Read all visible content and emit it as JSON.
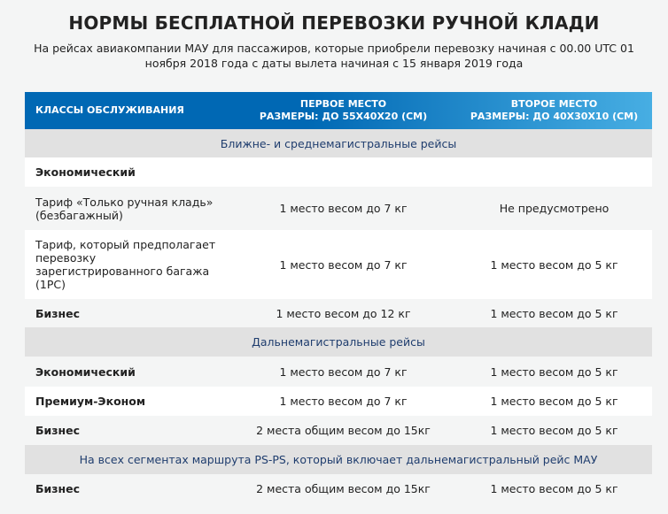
{
  "title": "НОРМЫ БЕСПЛАТНОЙ ПЕРЕВОЗКИ РУЧНОЙ КЛАДИ",
  "subtitle": "На рейсах авиакомпании МАУ для пассажиров, которые приобрели перевозку начиная с 00.00 UTC 01 ноября 2018 года с даты вылета начиная с 15 января 2019 года",
  "header": {
    "col1": "КЛАССЫ ОБСЛУЖИВАНИЯ",
    "col2_line1": "ПЕРВОЕ МЕСТО",
    "col2_line2": "РАЗМЕРЫ: ДО 55Х40Х20 (СМ)",
    "col3_line1": "ВТОРОЕ МЕСТО",
    "col3_line2": "РАЗМЕРЫ: ДО 40Х30Х10 (СМ)"
  },
  "sections": [
    {
      "title": "Ближне- и среднемагистральные рейсы",
      "rows": [
        {
          "cls": "Экономический",
          "first": "",
          "second": ""
        },
        {
          "cls": "Тариф «Только ручная кладь» (безбагажный)",
          "first": "1 место весом до 7 кг",
          "second": "Не предусмотрено"
        },
        {
          "cls": "Тариф, который предполагает перевозку зарегистрированного багажа (1PC)",
          "first": "1 место весом до 7 кг",
          "second": "1 место весом до 5 кг"
        },
        {
          "cls": "Бизнес",
          "first": "1 место весом до 12 кг",
          "second": "1 место весом до 5 кг"
        }
      ]
    },
    {
      "title": "Дальнемагистральные рейсы",
      "rows": [
        {
          "cls": "Экономический",
          "first": "1 место весом до 7 кг",
          "second": "1 место весом до 5 кг"
        },
        {
          "cls": "Премиум-Эконом",
          "first": "1 место весом до 7 кг",
          "second": "1 место весом до 5 кг"
        },
        {
          "cls": "Бизнес",
          "first": "2 места общим весом до 15кг",
          "second": "1 место весом до 5 кг"
        }
      ]
    },
    {
      "title": "На всех сегментах маршрута PS-PS, который включает дальнемагистральный рейс МАУ",
      "rows": [
        {
          "cls": "Бизнес",
          "first": "2 места общим весом до 15кг",
          "second": "1 место весом до 5 кг"
        }
      ]
    }
  ]
}
